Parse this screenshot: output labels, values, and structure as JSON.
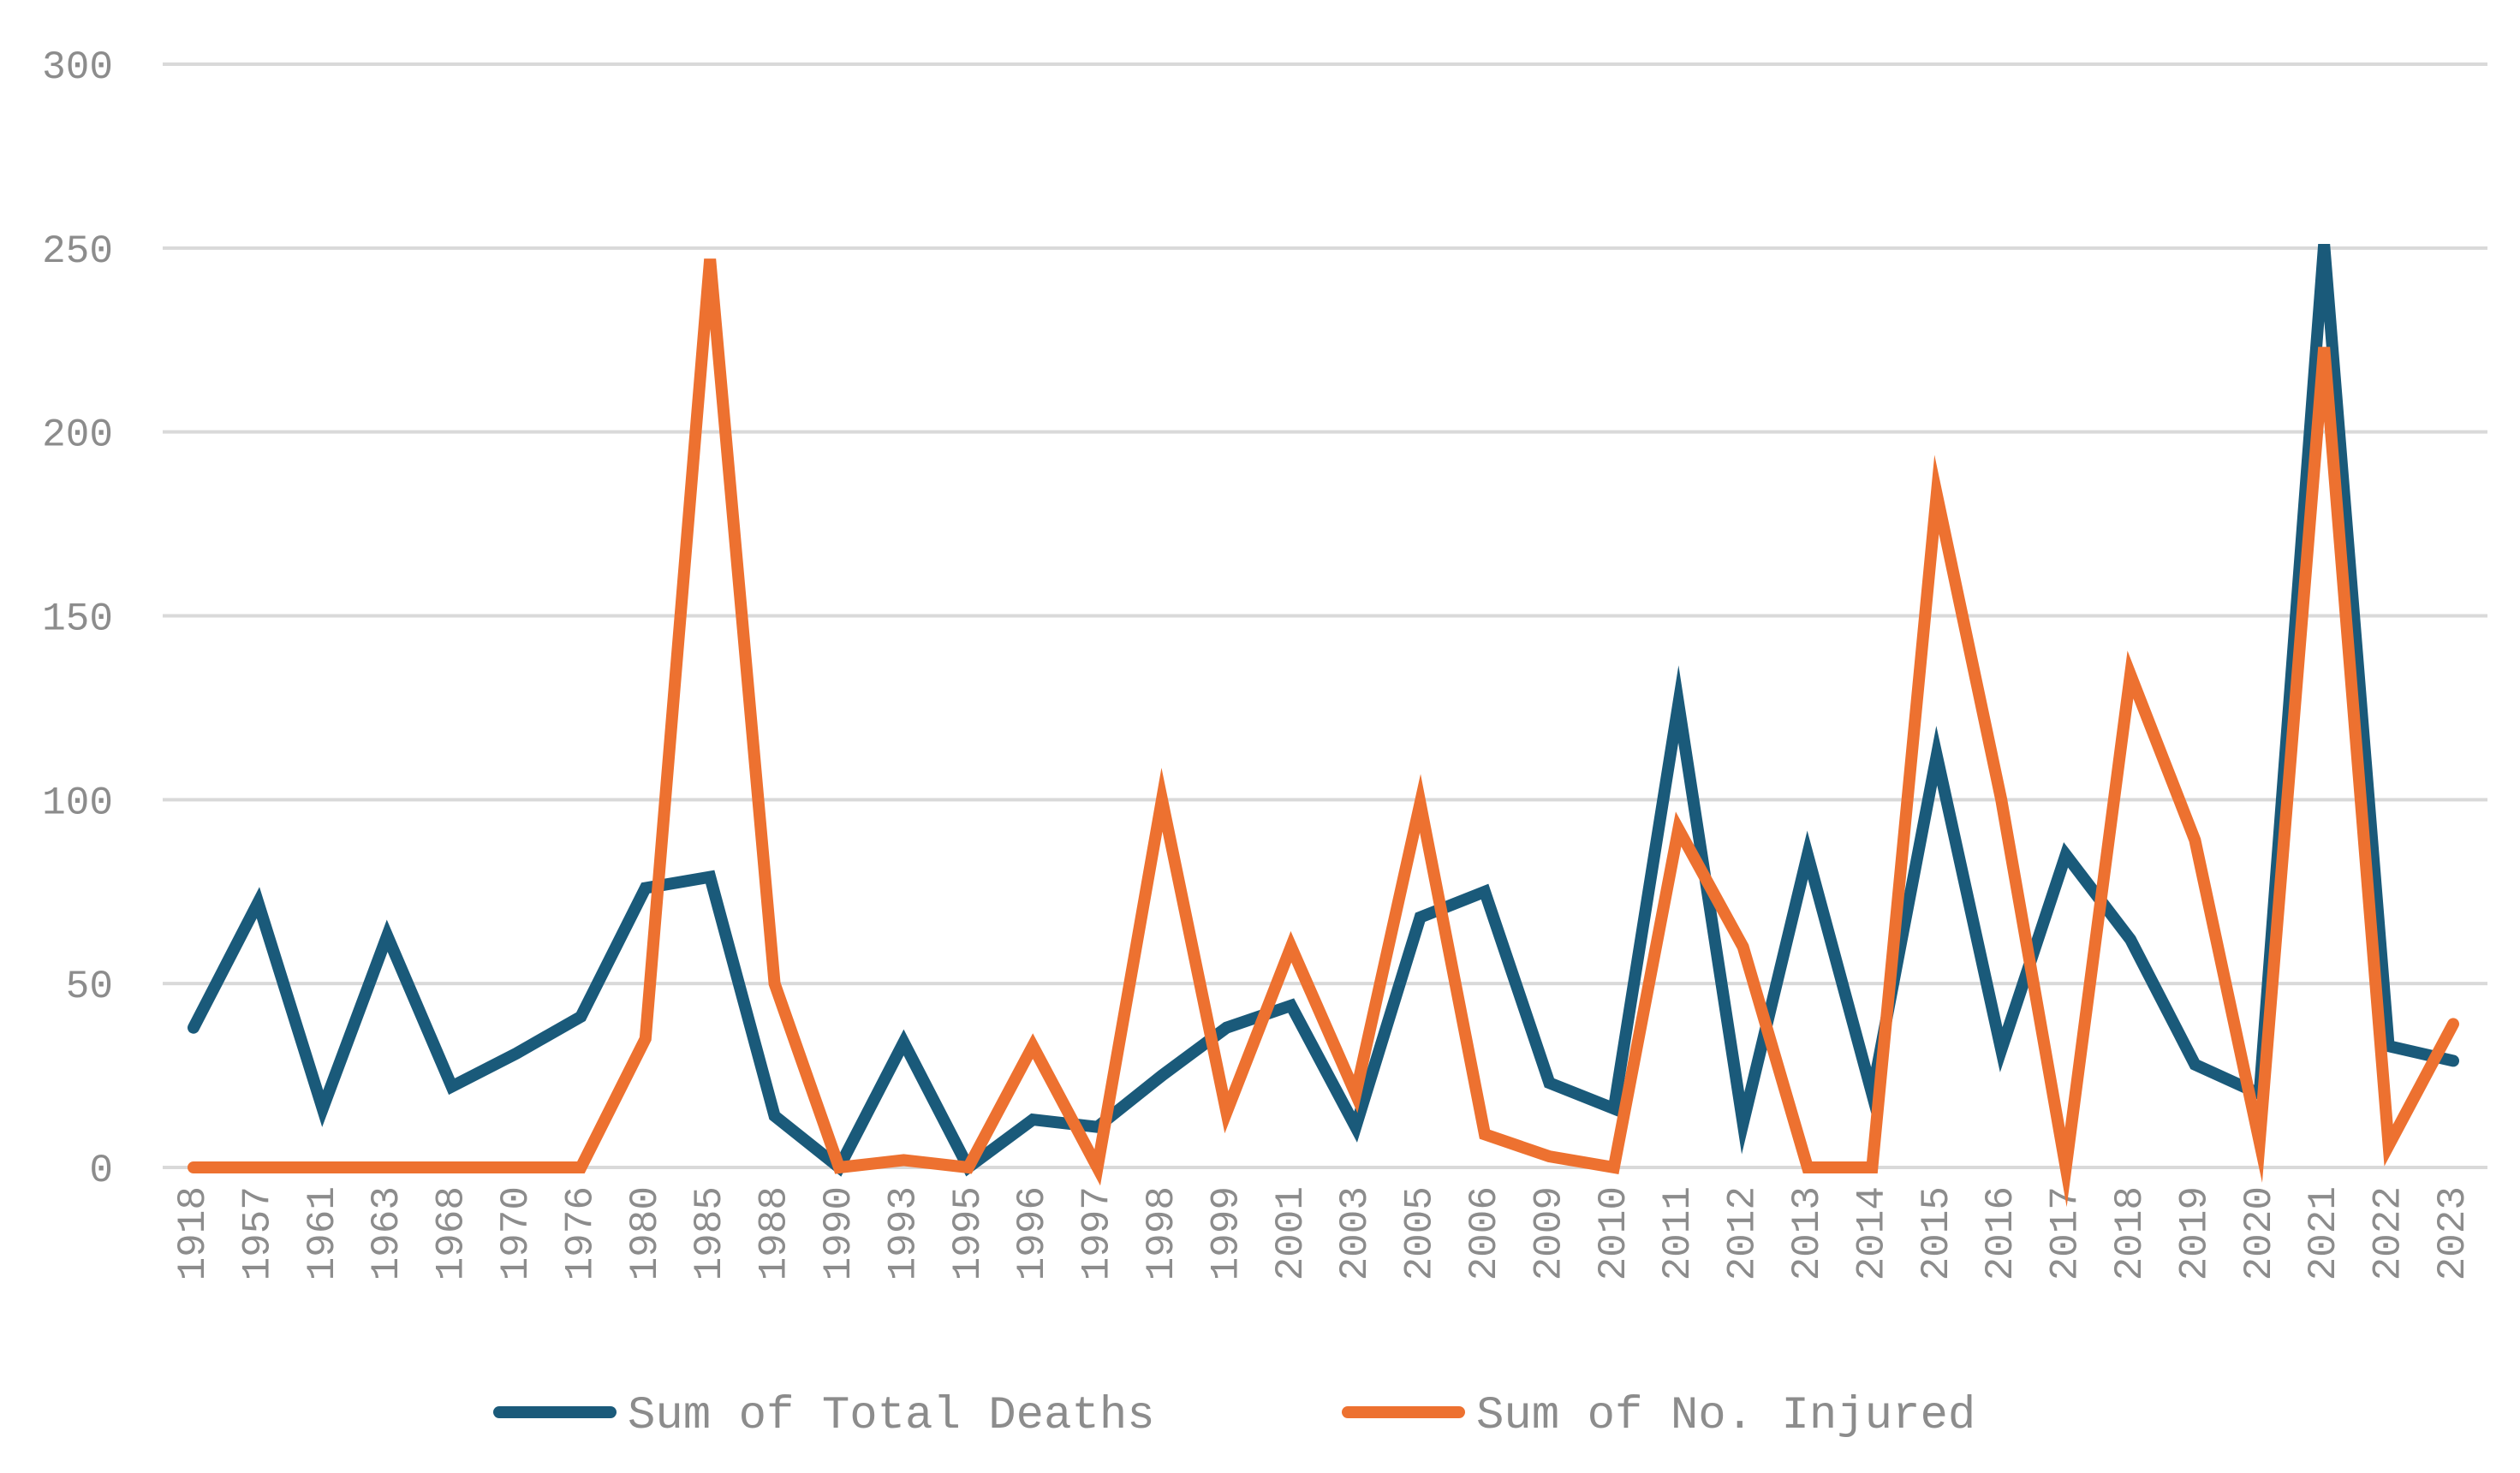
{
  "chart_data": {
    "type": "line",
    "title": "",
    "xlabel": "",
    "ylabel": "",
    "ylim": [
      0,
      300
    ],
    "yticks": [
      0,
      50,
      100,
      150,
      200,
      250,
      300
    ],
    "grid": true,
    "legend_position": "bottom",
    "categories": [
      "1918",
      "1957",
      "1961",
      "1963",
      "1968",
      "1970",
      "1976",
      "1980",
      "1985",
      "1988",
      "1990",
      "1993",
      "1995",
      "1996",
      "1997",
      "1998",
      "1999",
      "2001",
      "2003",
      "2005",
      "2006",
      "2009",
      "2010",
      "2011",
      "2012",
      "2013",
      "2014",
      "2015",
      "2016",
      "2017",
      "2018",
      "2019",
      "2020",
      "2021",
      "2022",
      "2023"
    ],
    "series": [
      {
        "name": "Sum of Total Deaths",
        "color": "#1a5a7a",
        "values": [
          38,
          72,
          16,
          63,
          22,
          31,
          41,
          76,
          79,
          14,
          0,
          34,
          0,
          13,
          11,
          25,
          38,
          44,
          11,
          68,
          75,
          23,
          16,
          126,
          12,
          85,
          20,
          112,
          32,
          85,
          62,
          28,
          20,
          251,
          33,
          29
        ]
      },
      {
        "name": "Sum of No. Injured",
        "color": "#ed7130",
        "values": [
          0,
          0,
          0,
          0,
          0,
          0,
          0,
          35,
          247,
          50,
          0,
          2,
          0,
          33,
          0,
          100,
          15,
          60,
          20,
          99,
          9,
          3,
          0,
          92,
          60,
          0,
          0,
          183,
          100,
          0,
          134,
          89,
          7,
          223,
          6,
          39
        ]
      }
    ]
  }
}
